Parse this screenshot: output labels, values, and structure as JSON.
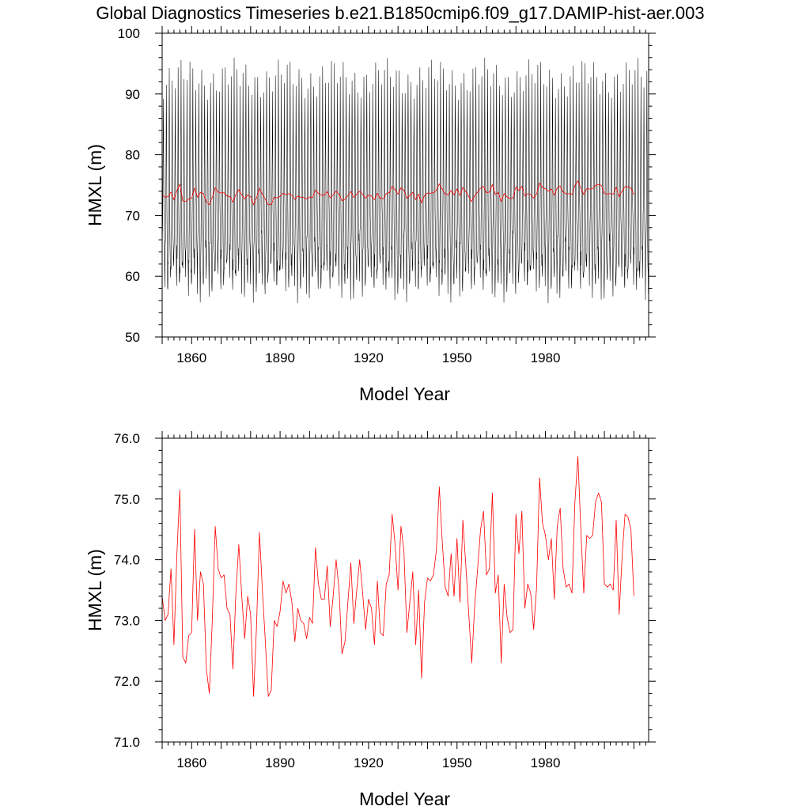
{
  "title": "Global Diagnostics Timeseries b.e21.B1850cmip6.f09_g17.DAMIP-hist-aer.003",
  "colors": {
    "monthly": "#000000",
    "annual": "#ff0000",
    "axis": "#000000"
  },
  "chart_data": [
    {
      "type": "line",
      "xlabel": "Model Year",
      "ylabel": "HMXL (m)",
      "xlim": [
        1850,
        2015
      ],
      "ylim": [
        50,
        100
      ],
      "xticks": [
        1860,
        1890,
        1920,
        1950,
        1980
      ],
      "xtick_labels": [
        "1860",
        "1890",
        "1920",
        "1950",
        "1980"
      ],
      "yticks": [
        50,
        60,
        70,
        80,
        90,
        100
      ],
      "ytick_labels": [
        "50",
        "60",
        "70",
        "80",
        "90",
        "100"
      ],
      "grid": false,
      "legend": "none",
      "series": [
        {
          "style": "monthly seasonal cycle, black",
          "x_start": 1850,
          "step": 0.08333,
          "cycle_min": [
            62,
            64,
            68,
            73,
            83,
            92.5,
            82,
            72,
            67,
            64,
            61.5,
            59
          ],
          "cycle_min_wobble": 2.2
        },
        {
          "style": "annual mean, red",
          "x_start": 1850,
          "step": 1,
          "values": [
            73.4,
            73.0,
            73.1,
            73.85,
            72.6,
            74.1,
            75.15,
            72.4,
            72.3,
            72.75,
            72.8,
            74.5,
            73.0,
            73.8,
            73.6,
            72.2,
            71.8,
            73.0,
            74.55,
            73.85,
            73.7,
            73.75,
            73.2,
            73.1,
            72.2,
            73.45,
            74.25,
            73.4,
            72.7,
            73.4,
            73.1,
            71.75,
            72.9,
            74.45,
            73.5,
            72.65,
            71.75,
            71.85,
            73.0,
            72.9,
            73.15,
            73.65,
            73.45,
            73.6,
            73.3,
            72.65,
            73.2,
            73.0,
            72.95,
            72.7,
            73.05,
            72.95,
            74.2,
            73.6,
            73.35,
            73.35,
            73.9,
            72.9,
            73.4,
            74.0,
            73.5,
            72.45,
            72.65,
            73.3,
            73.95,
            72.95,
            73.5,
            74.0,
            73.45,
            72.85,
            73.35,
            73.2,
            72.6,
            73.65,
            72.8,
            72.75,
            73.6,
            73.75,
            74.75,
            74.25,
            73.5,
            74.55,
            74.15,
            72.8,
            73.3,
            73.8,
            72.6,
            73.5,
            72.05,
            73.3,
            73.7,
            73.65,
            73.75,
            74.15,
            75.2,
            74.3,
            73.55,
            73.4,
            74.1,
            73.4,
            74.35,
            73.3,
            74.65,
            73.9,
            73.1,
            72.3,
            73.25,
            73.85,
            74.5,
            74.8,
            73.75,
            73.85,
            75.1,
            73.45,
            73.75,
            72.3,
            73.6,
            73.05,
            72.8,
            72.85,
            74.75,
            74.1,
            74.8,
            73.2,
            73.6,
            73.45,
            72.85,
            73.55,
            75.35,
            74.6,
            74.4,
            74.0,
            74.35,
            73.35,
            74.55,
            74.85,
            73.85,
            73.55,
            73.6,
            73.45,
            74.95,
            75.7,
            74.5,
            73.45,
            74.4,
            74.35,
            74.4,
            74.95,
            75.1,
            74.95,
            73.6,
            73.55,
            73.6,
            73.5,
            74.65,
            73.1,
            74.05,
            74.75,
            74.7,
            74.5,
            73.4
          ]
        }
      ]
    },
    {
      "type": "line",
      "xlabel": "Model Year",
      "ylabel": "HMXL (m)",
      "xlim": [
        1850,
        2015
      ],
      "ylim": [
        71,
        76
      ],
      "xticks": [
        1860,
        1890,
        1920,
        1950,
        1980
      ],
      "xtick_labels": [
        "1860",
        "1890",
        "1920",
        "1950",
        "1980"
      ],
      "yticks": [
        71,
        72,
        73,
        74,
        75,
        76
      ],
      "ytick_labels": [
        "71.0",
        "72.0",
        "73.0",
        "74.0",
        "75.0",
        "76.0"
      ],
      "grid": false,
      "legend": "none",
      "series": [
        {
          "style": "annual mean, red",
          "x_start": 1850,
          "step": 1,
          "values": [
            73.4,
            73.0,
            73.1,
            73.85,
            72.6,
            74.1,
            75.15,
            72.4,
            72.3,
            72.75,
            72.8,
            74.5,
            73.0,
            73.8,
            73.6,
            72.2,
            71.8,
            73.0,
            74.55,
            73.85,
            73.7,
            73.75,
            73.2,
            73.1,
            72.2,
            73.45,
            74.25,
            73.4,
            72.7,
            73.4,
            73.1,
            71.75,
            72.9,
            74.45,
            73.5,
            72.65,
            71.75,
            71.85,
            73.0,
            72.9,
            73.15,
            73.65,
            73.45,
            73.6,
            73.3,
            72.65,
            73.2,
            73.0,
            72.95,
            72.7,
            73.05,
            72.95,
            74.2,
            73.6,
            73.35,
            73.35,
            73.9,
            72.9,
            73.4,
            74.0,
            73.5,
            72.45,
            72.65,
            73.3,
            73.95,
            72.95,
            73.5,
            74.0,
            73.45,
            72.85,
            73.35,
            73.2,
            72.6,
            73.65,
            72.8,
            72.75,
            73.6,
            73.75,
            74.75,
            74.25,
            73.5,
            74.55,
            74.15,
            72.8,
            73.3,
            73.8,
            72.6,
            73.5,
            72.05,
            73.3,
            73.7,
            73.65,
            73.75,
            74.15,
            75.2,
            74.3,
            73.55,
            73.4,
            74.1,
            73.4,
            74.35,
            73.3,
            74.65,
            73.9,
            73.1,
            72.3,
            73.25,
            73.85,
            74.5,
            74.8,
            73.75,
            73.85,
            75.1,
            73.45,
            73.75,
            72.3,
            73.6,
            73.05,
            72.8,
            72.85,
            74.75,
            74.1,
            74.8,
            73.2,
            73.6,
            73.45,
            72.85,
            73.55,
            75.35,
            74.6,
            74.4,
            74.0,
            74.35,
            73.35,
            74.55,
            74.85,
            73.85,
            73.55,
            73.6,
            73.45,
            74.95,
            75.7,
            74.5,
            73.45,
            74.4,
            74.35,
            74.4,
            74.95,
            75.1,
            74.95,
            73.6,
            73.55,
            73.6,
            73.5,
            74.65,
            73.1,
            74.05,
            74.75,
            74.7,
            74.5,
            73.4
          ]
        }
      ]
    }
  ]
}
